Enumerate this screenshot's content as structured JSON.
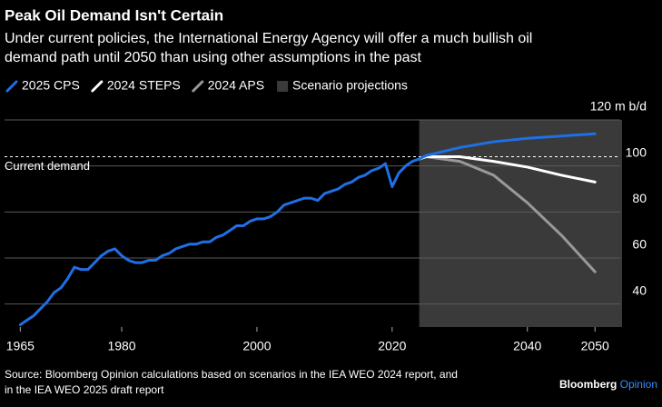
{
  "chart_data": {
    "type": "line",
    "title": "Peak Oil Demand Isn't Certain",
    "subtitle": [
      "Under current policies, the International Energy Agency will offer a much bullish oil",
      "demand path until 2050 than using other assumptions in the past"
    ],
    "series": [
      {
        "name": "2025 CPS",
        "color": "#1f6fe5",
        "x": [
          1965,
          1966,
          1967,
          1968,
          1969,
          1970,
          1971,
          1972,
          1973,
          1974,
          1975,
          1976,
          1977,
          1978,
          1979,
          1980,
          1981,
          1982,
          1983,
          1984,
          1985,
          1986,
          1987,
          1988,
          1989,
          1990,
          1991,
          1992,
          1993,
          1994,
          1995,
          1996,
          1997,
          1998,
          1999,
          2000,
          2001,
          2002,
          2003,
          2004,
          2005,
          2006,
          2007,
          2008,
          2009,
          2010,
          2011,
          2012,
          2013,
          2014,
          2015,
          2016,
          2017,
          2018,
          2019,
          2020,
          2021,
          2022,
          2023,
          2024,
          2025,
          2030,
          2035,
          2040,
          2045,
          2050
        ],
        "values": [
          31,
          33,
          35,
          38,
          41,
          45,
          47,
          51,
          56,
          55,
          55,
          58,
          61,
          63,
          64,
          61,
          59,
          58,
          58,
          59,
          59,
          61,
          62,
          64,
          65,
          66,
          66,
          67,
          67,
          69,
          70,
          72,
          74,
          74,
          76,
          77,
          77,
          78,
          80,
          83,
          84,
          85,
          86,
          86,
          85,
          88,
          89,
          90,
          92,
          93,
          95,
          96,
          98,
          99,
          101,
          91,
          97,
          100,
          102,
          103,
          104.5,
          108,
          110.5,
          112,
          113,
          114
        ]
      },
      {
        "name": "2024 STEPS",
        "color": "#ffffff",
        "x": [
          2024,
          2025,
          2030,
          2035,
          2040,
          2045,
          2050
        ],
        "values": [
          103,
          104,
          104,
          102,
          99.5,
          96,
          93
        ]
      },
      {
        "name": "2024 APS",
        "color": "#999999",
        "x": [
          2024,
          2025,
          2030,
          2035,
          2040,
          2045,
          2050
        ],
        "values": [
          103,
          104,
          102,
          96,
          84,
          70,
          54
        ]
      }
    ],
    "projection": {
      "name": "Scenario projections",
      "color": "#3a3a3a",
      "range": [
        2024,
        2054
      ]
    },
    "reference_line": {
      "value": 104,
      "label": "Current demand"
    },
    "xlim": [
      1962,
      2054
    ],
    "xticks": [
      1965,
      1980,
      2000,
      2020,
      2040,
      2050
    ],
    "ylim": [
      30,
      120
    ],
    "yticks": [
      40,
      60,
      80,
      100,
      {
        "value": 120,
        "label": "120 m b/d"
      }
    ],
    "grid": true,
    "source": [
      "Source: Bloomberg Opinion calculations based on scenarios in the IEA WEO 2024 report, and",
      "in the IEA WEO 2025 draft report"
    ],
    "brand": [
      "Bloomberg",
      "Opinion"
    ]
  }
}
